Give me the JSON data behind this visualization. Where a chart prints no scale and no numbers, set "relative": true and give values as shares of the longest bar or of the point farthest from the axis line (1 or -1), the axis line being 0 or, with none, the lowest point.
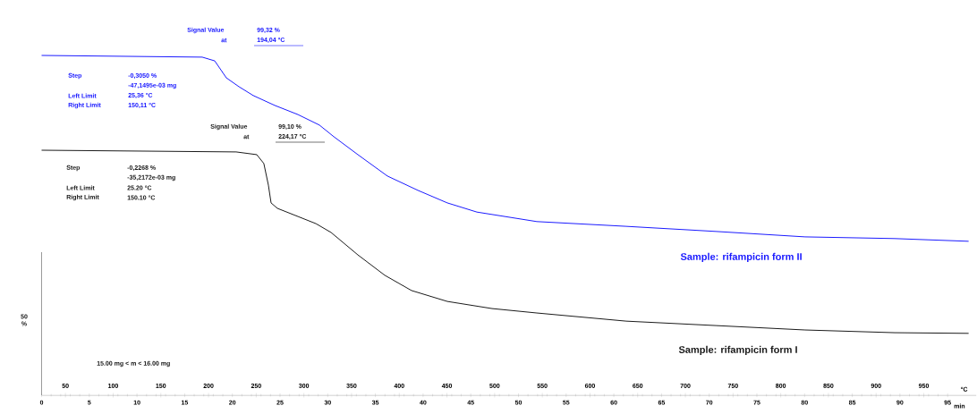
{
  "chart_data": {
    "type": "line",
    "relative": true,
    "xlabel": "min",
    "x2label": "°C",
    "xlim": [
      0,
      98
    ],
    "xticks": [
      0,
      5,
      10,
      15,
      20,
      25,
      30,
      35,
      40,
      45,
      50,
      55,
      60,
      65,
      70,
      75,
      80,
      85,
      90,
      95
    ],
    "x2lim": [
      25,
      1005
    ],
    "x2ticks": [
      50,
      100,
      150,
      200,
      250,
      300,
      350,
      400,
      450,
      500,
      550,
      600,
      650,
      700,
      750,
      800,
      850,
      900,
      950
    ],
    "grid": false,
    "marker": "none",
    "line_style": "solid",
    "series": [
      {
        "name": "Sample: rifampicin form II",
        "color": "#1a1aff",
        "x": [
          0,
          16.84,
          18.15,
          19.37,
          20.69,
          22.19,
          24.44,
          26.88,
          29.13,
          30.63,
          33.16,
          36.26,
          39.45,
          42.54,
          45.64,
          51.92,
          61.3,
          70.69,
          80.06,
          89.45,
          97.2
        ],
        "values": [
          1.0,
          0.995,
          0.984,
          0.934,
          0.908,
          0.882,
          0.853,
          0.826,
          0.795,
          0.761,
          0.708,
          0.645,
          0.603,
          0.566,
          0.539,
          0.511,
          0.497,
          0.482,
          0.466,
          0.461,
          0.453
        ]
      },
      {
        "name": "Sample: rifampicin form I",
        "color": "#1a1a1a",
        "x": [
          0,
          20.4,
          22.56,
          23.3,
          23.78,
          24.06,
          24.72,
          26.88,
          28.76,
          30.35,
          33.16,
          35.98,
          38.79,
          42.54,
          47.23,
          51.92,
          61.3,
          70.69,
          80.06,
          89.45,
          97.2
        ],
        "values": [
          0.721,
          0.716,
          0.708,
          0.682,
          0.618,
          0.566,
          0.55,
          0.526,
          0.505,
          0.479,
          0.413,
          0.353,
          0.308,
          0.276,
          0.255,
          0.242,
          0.218,
          0.205,
          0.192,
          0.184,
          0.182
        ]
      }
    ],
    "annotations": [
      "Signal Value",
      "at",
      "99,32 %",
      "194,04 °C",
      "Step",
      "-0,3050 %",
      "-47,1495e-03 mg",
      "Left Limit",
      "25,36 °C",
      "Right Limit",
      "150,11 °C",
      "Signal Value",
      "at",
      "99,10 %",
      "224,17 °C",
      "Step",
      "-0,2268 %",
      "-35,2172e-03 mg",
      "Left Limit",
      "25.20 °C",
      "Right Limit",
      "150.10 °C",
      "50 %",
      "15.00 mg < m < 16.00 mg"
    ]
  }
}
